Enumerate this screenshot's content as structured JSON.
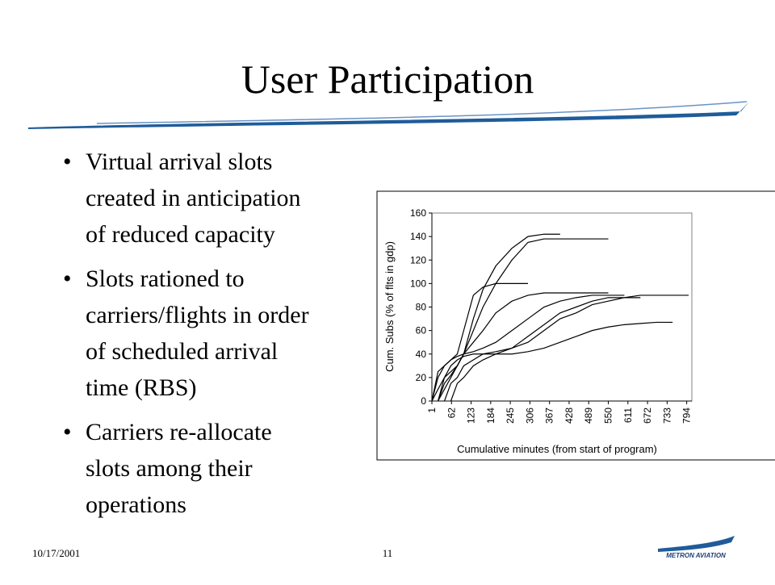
{
  "slide": {
    "title": "User Participation",
    "bullets": [
      {
        "lines": [
          "Virtual arrival slots",
          "created in anticipation",
          "of reduced capacity"
        ]
      },
      {
        "lines": [
          "Slots rationed to",
          "carriers/flights in order",
          "of scheduled arrival",
          "time (RBS)"
        ]
      },
      {
        "lines": [
          "Carriers re-allocate",
          "slots among their",
          "operations"
        ]
      }
    ],
    "date": "10/17/2001",
    "page": "11",
    "logo": "METRON AVIATION"
  },
  "chart_data": {
    "type": "line",
    "y_label": "Cum. Subs (% of flts in gdp)",
    "x_label": "Cumulative minutes (from start of program)",
    "x": [
      1,
      20,
      40,
      60,
      80,
      100,
      130,
      160,
      200,
      250,
      300,
      350,
      400,
      450,
      500,
      550,
      600,
      650,
      700,
      750,
      800
    ],
    "xlim": [
      1,
      810
    ],
    "xticks": [
      1,
      62,
      123,
      184,
      245,
      306,
      367,
      428,
      489,
      550,
      611,
      672,
      733,
      794
    ],
    "ylim": [
      0,
      160
    ],
    "yticks": [
      0,
      20,
      40,
      60,
      80,
      100,
      120,
      140,
      160
    ],
    "series": [
      {
        "color": "#000000",
        "values": [
          0,
          10,
          20,
          25,
          30,
          40,
          70,
          95,
          115,
          130,
          140,
          142,
          142,
          null,
          null,
          null,
          null,
          null,
          null,
          null,
          null
        ]
      },
      {
        "color": "#000000",
        "values": [
          null,
          0,
          15,
          22,
          30,
          40,
          60,
          80,
          100,
          120,
          135,
          138,
          138,
          138,
          138,
          138,
          null,
          null,
          null,
          null,
          null
        ]
      },
      {
        "color": "#000000",
        "values": [
          0,
          20,
          30,
          35,
          40,
          60,
          90,
          97,
          100,
          100,
          100,
          null,
          null,
          null,
          null,
          null,
          null,
          null,
          null,
          null,
          null
        ]
      },
      {
        "color": "#000000",
        "values": [
          null,
          0,
          10,
          20,
          30,
          40,
          50,
          60,
          75,
          85,
          90,
          92,
          92,
          92,
          92,
          92,
          null,
          null,
          null,
          null,
          null
        ]
      },
      {
        "color": "#000000",
        "values": [
          null,
          null,
          0,
          15,
          20,
          30,
          35,
          40,
          42,
          45,
          50,
          60,
          70,
          75,
          82,
          85,
          88,
          90,
          90,
          90,
          90
        ]
      },
      {
        "color": "#000000",
        "values": [
          null,
          null,
          null,
          0,
          15,
          20,
          30,
          35,
          40,
          40,
          42,
          45,
          50,
          55,
          60,
          63,
          65,
          66,
          67,
          67,
          null
        ]
      },
      {
        "color": "#000000",
        "values": [
          0,
          25,
          30,
          35,
          38,
          40,
          42,
          45,
          50,
          60,
          70,
          80,
          85,
          88,
          90,
          90,
          90,
          null,
          null,
          null,
          null
        ]
      },
      {
        "color": "#000000",
        "values": [
          null,
          0,
          20,
          30,
          35,
          38,
          40,
          40,
          40,
          45,
          55,
          65,
          75,
          80,
          85,
          88,
          88,
          88,
          null,
          null,
          null
        ]
      }
    ]
  }
}
